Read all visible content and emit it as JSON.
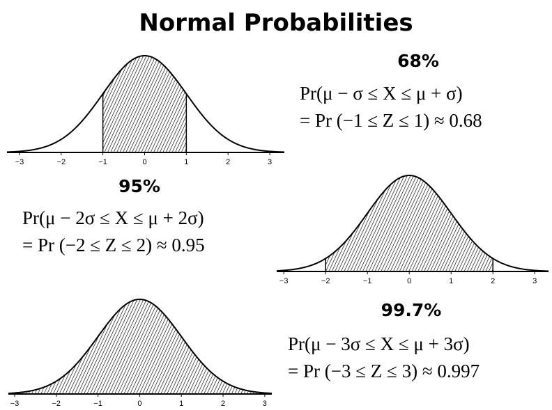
{
  "title": "Normal Probabilities",
  "panels": [
    {
      "label": "68%",
      "lines": [
        "Pr(μ − σ ≤ X ≤ μ + σ)",
        "= Pr (−1 ≤ Z ≤ 1) ≈ 0.68"
      ],
      "shade": [
        -1,
        1
      ],
      "xlim": [
        -3.3,
        3.35
      ],
      "xticks": [
        {
          "value": -3,
          "label": "−3"
        },
        {
          "value": -2,
          "label": "−2"
        },
        {
          "value": -1,
          "label": "−1"
        },
        0,
        1,
        2,
        3
      ]
    },
    {
      "label": "95%",
      "lines": [
        "Pr(μ − 2σ ≤ X ≤ μ + 2σ)",
        "= Pr (−2 ≤ Z ≤ 2) ≈ 0.95"
      ],
      "shade": [
        -2,
        2
      ],
      "xlim": [
        -3.17,
        3.33
      ],
      "xticks": [
        {
          "value": -3,
          "label": "−3"
        },
        {
          "value": -2,
          "label": "−2"
        },
        {
          "value": -1,
          "label": "−1"
        },
        0,
        1,
        2,
        3
      ]
    },
    {
      "label": "99.7%",
      "lines": [
        "Pr(μ − 3σ ≤ X ≤ μ + 3σ)",
        "= Pr (−3 ≤ Z ≤ 3) ≈ 0.997"
      ],
      "shade": [
        -3,
        3
      ],
      "xlim": [
        -3.15,
        3.17
      ],
      "xticks": [
        {
          "value": -3,
          "label": "−3"
        },
        {
          "value": -2,
          "label": "−2"
        },
        {
          "value": -1,
          "label": "−1"
        },
        0,
        1,
        2,
        3
      ]
    }
  ]
}
